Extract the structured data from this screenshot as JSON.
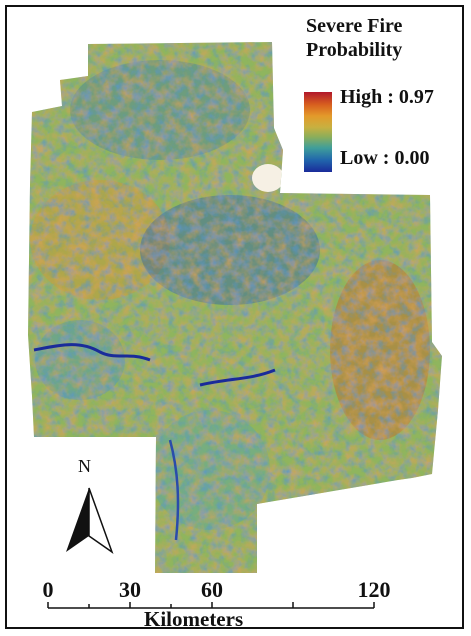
{
  "legend": {
    "title_line1": "Severe Fire",
    "title_line2": "Probability",
    "high_label": "High : 0.97",
    "low_label": "Low : 0.00",
    "ramp_colors": [
      "#b2182b",
      "#d8601f",
      "#e39a2a",
      "#c8b040",
      "#8cae5a",
      "#3f9e9a",
      "#2166ac",
      "#1a2b9a"
    ]
  },
  "north_arrow": {
    "letter": "N"
  },
  "scale_bar": {
    "ticks": [
      "0",
      "30",
      "60",
      "120"
    ],
    "unit": "Kilometers"
  },
  "map": {
    "base_color": "#8fb55e"
  }
}
